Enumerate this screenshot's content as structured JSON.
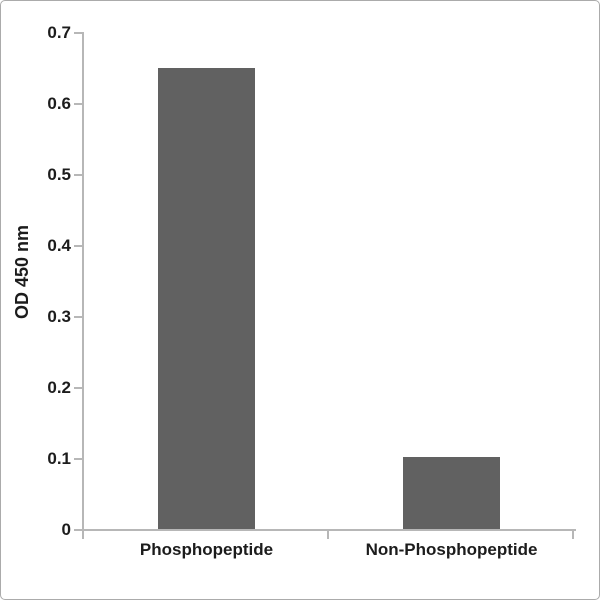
{
  "chart_data": {
    "type": "bar",
    "title": "",
    "categories": [
      "Phosphopeptide",
      "Non-Phosphopeptide"
    ],
    "values": [
      0.649,
      0.101
    ],
    "xlabel": "",
    "ylabel": "OD 450 nm",
    "ylim": [
      0,
      0.7
    ],
    "ytick_step": 0.1,
    "ytick_labels": [
      "0",
      "0.1",
      "0.2",
      "0.3",
      "0.4",
      "0.5",
      "0.6",
      "0.7"
    ],
    "grid": false,
    "legend_position": "none",
    "bar_color": "#616161",
    "axis_color": "#b7b7b7",
    "text_color": "#1c1c1c"
  }
}
